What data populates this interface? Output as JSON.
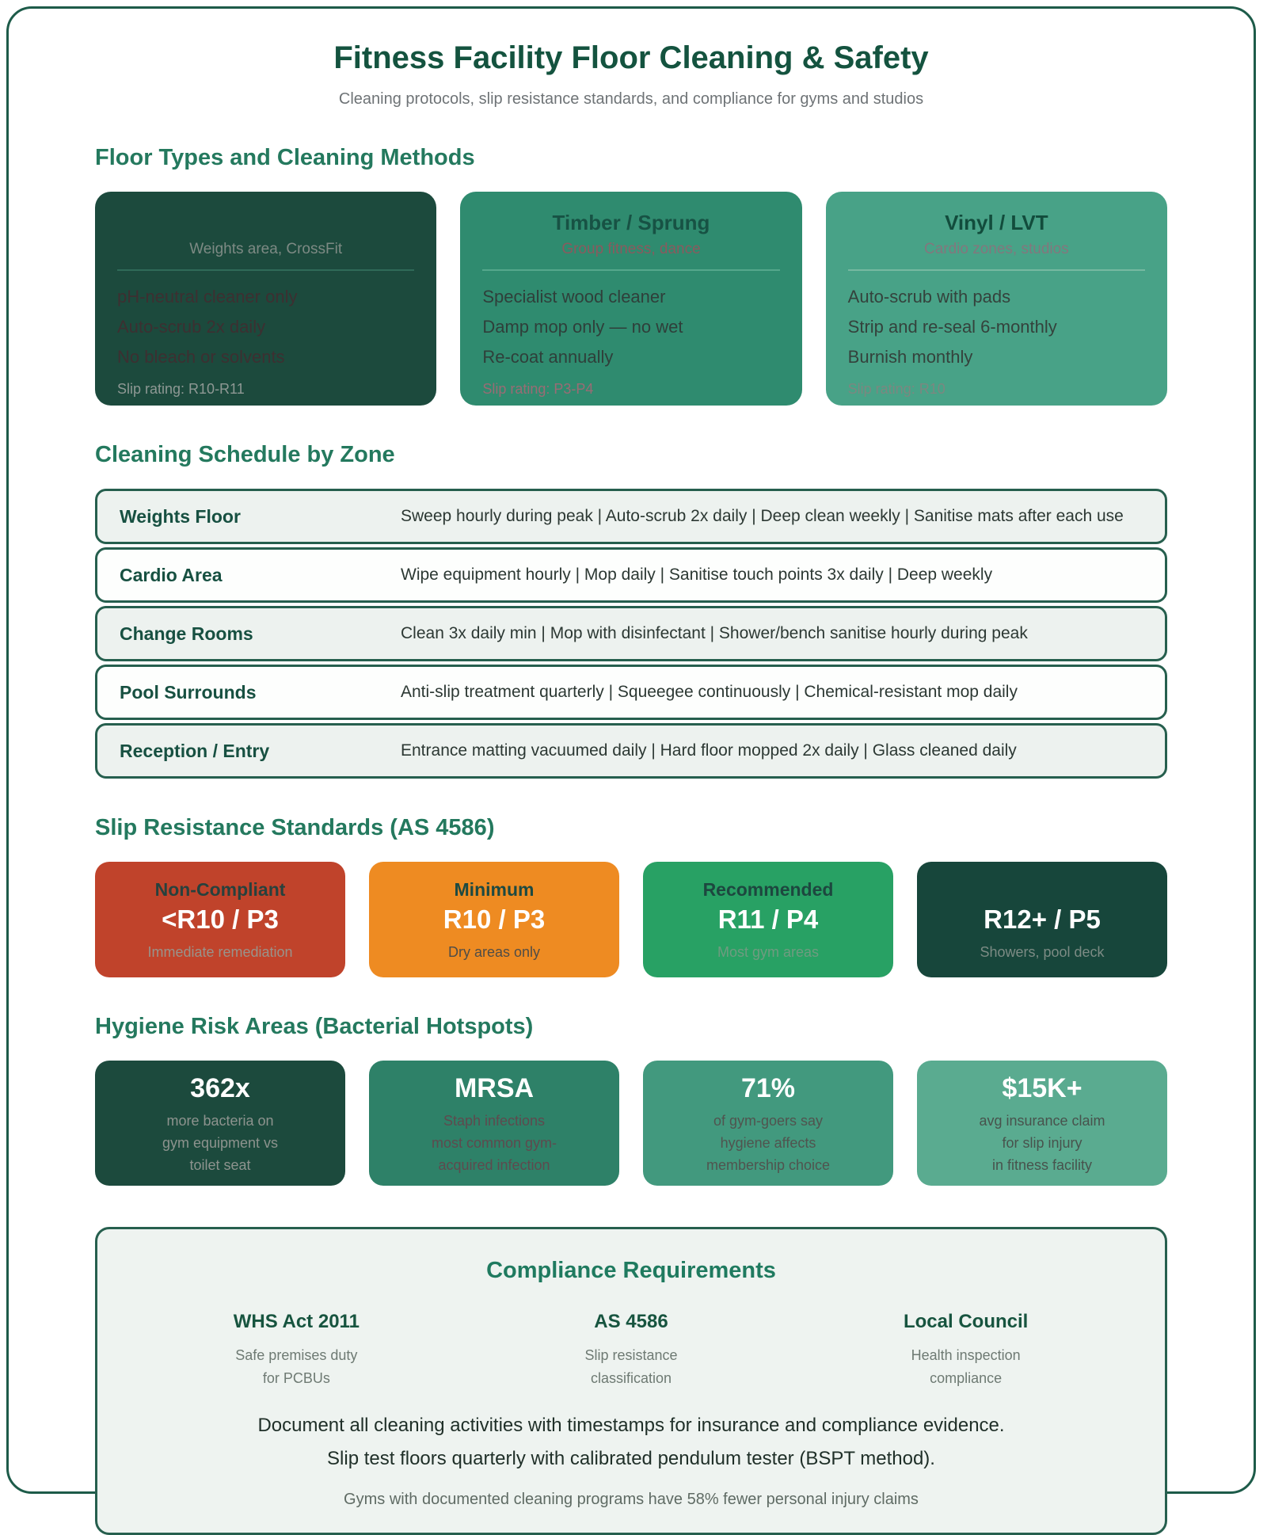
{
  "page": {
    "title": "Fitness Facility Floor Cleaning & Safety",
    "subtitle": "Cleaning protocols, slip resistance standards, and compliance for gyms and studios"
  },
  "palette": {
    "page_border": "#1d5b49",
    "heading_teal": "#24795e",
    "dark_green_card": "#1c4a3d",
    "mid_green_card": "#2f8b6f",
    "light_green_card": "#48a287",
    "non_compliant_red": "#c0432b",
    "minimum_orange": "#ee8b22",
    "recommended_green": "#28a164",
    "premium_dark_green": "#17463b"
  },
  "floor_types": {
    "heading": "Floor Types and Cleaning Methods",
    "cards": [
      {
        "title": "",
        "audience": "Weights area, CrossFit",
        "items": [
          "pH-neutral cleaner only",
          "Auto-scrub 2x daily",
          "No bleach or solvents"
        ],
        "slip_rating": "Slip rating: R10-R11"
      },
      {
        "title": "Timber / Sprung",
        "audience": "Group fitness, dance",
        "items": [
          "Specialist wood cleaner",
          "Damp mop only — no wet",
          "Re-coat annually"
        ],
        "slip_rating": "Slip rating: P3-P4"
      },
      {
        "title": "Vinyl / LVT",
        "audience": "Cardio zones, studios",
        "items": [
          "Auto-scrub with pads",
          "Strip and re-seal 6-monthly",
          "Burnish monthly"
        ],
        "slip_rating": "Slip rating: R10"
      }
    ]
  },
  "schedule": {
    "heading": "Cleaning Schedule by Zone",
    "rows": [
      {
        "zone": "Weights Floor",
        "tasks": "Sweep hourly during peak | Auto-scrub 2x daily | Deep clean weekly | Sanitise mats after each use"
      },
      {
        "zone": "Cardio Area",
        "tasks": "Wipe equipment hourly | Mop daily | Sanitise touch points 3x daily | Deep weekly"
      },
      {
        "zone": "Change Rooms",
        "tasks": "Clean 3x daily min | Mop with disinfectant | Shower/bench sanitise hourly during peak"
      },
      {
        "zone": "Pool Surrounds",
        "tasks": "Anti-slip treatment quarterly | Squeegee continuously | Chemical-resistant mop daily"
      },
      {
        "zone": "Reception / Entry",
        "tasks": "Entrance matting vacuumed daily | Hard floor mopped 2x daily | Glass cleaned daily"
      }
    ]
  },
  "slip_standards": {
    "heading": "Slip Resistance Standards (AS 4586)",
    "cards": [
      {
        "label": "Non-Compliant",
        "rating": "<R10 / P3",
        "note": "Immediate remediation"
      },
      {
        "label": "Minimum",
        "rating": "R10 / P3",
        "note": "Dry areas only"
      },
      {
        "label": "Recommended",
        "rating": "R11 / P4",
        "note": "Most gym areas"
      },
      {
        "label": "",
        "rating": "R12+ / P5",
        "note": "Showers, pool deck"
      }
    ]
  },
  "hygiene": {
    "heading": "Hygiene Risk Areas (Bacterial Hotspots)",
    "cards": [
      {
        "stat": "362x",
        "caption": "more bacteria on\ngym equipment vs\ntoilet seat"
      },
      {
        "stat": "MRSA",
        "caption": "Staph infections\nmost common gym-\nacquired infection"
      },
      {
        "stat": "71%",
        "caption": "of gym-goers say\nhygiene affects\nmembership choice"
      },
      {
        "stat": "$15K+",
        "caption": "avg insurance claim\nfor slip injury\nin fitness facility"
      }
    ]
  },
  "compliance": {
    "heading": "Compliance Requirements",
    "columns": [
      {
        "title": "WHS Act 2011",
        "caption": "Safe premises duty\nfor PCBUs"
      },
      {
        "title": "AS 4586",
        "caption": "Slip resistance\nclassification"
      },
      {
        "title": "Local Council",
        "caption": "Health inspection\ncompliance"
      }
    ],
    "notes": [
      "Document all cleaning activities with timestamps for insurance and compliance evidence.",
      "Slip test floors quarterly with calibrated pendulum tester (BSPT method)."
    ],
    "footnote": "Gyms with documented cleaning programs have 58% fewer personal injury claims"
  }
}
